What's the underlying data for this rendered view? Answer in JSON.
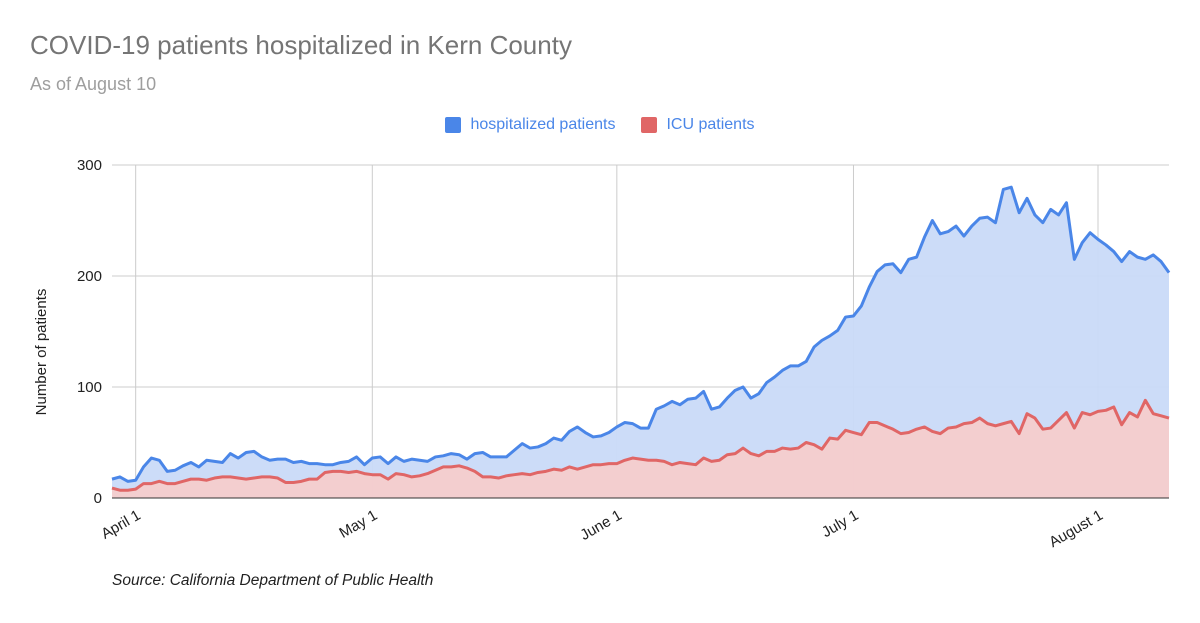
{
  "chart_data": {
    "type": "area",
    "title": "COVID-19 patients hospitalized in Kern County",
    "subtitle": "As of August 10",
    "ylabel": "Number of patients",
    "xlabel": "",
    "ylim": [
      0,
      300
    ],
    "y_ticks": [
      "0",
      "100",
      "200",
      "300"
    ],
    "x_ticks": [
      {
        "label": "April 1",
        "date": "2020-04-01"
      },
      {
        "label": "May 1",
        "date": "2020-05-01"
      },
      {
        "label": "June 1",
        "date": "2020-06-01"
      },
      {
        "label": "July 1",
        "date": "2020-07-01"
      },
      {
        "label": "August 1",
        "date": "2020-08-01"
      }
    ],
    "x_start": "2020-03-29",
    "x_end": "2020-08-10",
    "grid": true,
    "legend_position": "top",
    "source": "Source: California Department of Public Health",
    "series": [
      {
        "name": "hospitalized patients",
        "color": "#4a86e8",
        "fill": "#c9daf8",
        "values": [
          17,
          19,
          15,
          16,
          28,
          36,
          34,
          24,
          25,
          29,
          32,
          28,
          34,
          33,
          32,
          40,
          36,
          41,
          42,
          37,
          34,
          35,
          35,
          32,
          33,
          31,
          31,
          30,
          30,
          32,
          33,
          37,
          30,
          36,
          37,
          31,
          37,
          33,
          35,
          34,
          33,
          37,
          38,
          40,
          39,
          35,
          40,
          41,
          37,
          37,
          37,
          43,
          49,
          45,
          46,
          49,
          54,
          52,
          60,
          64,
          59,
          55,
          56,
          59,
          64,
          68,
          67,
          63,
          63,
          80,
          83,
          87,
          84,
          89,
          90,
          96,
          80,
          82,
          90,
          97,
          100,
          90,
          94,
          104,
          109,
          115,
          119,
          119,
          123,
          136,
          142,
          146,
          151,
          163,
          164,
          173,
          190,
          204,
          210,
          211,
          203,
          215,
          217,
          235,
          250,
          238,
          240,
          245,
          236,
          245,
          252,
          253,
          248,
          278,
          280,
          257,
          270,
          255,
          248,
          260,
          255,
          266,
          215,
          230,
          239,
          233,
          228,
          222,
          213,
          222,
          217,
          215,
          219,
          213,
          203
        ]
      },
      {
        "name": "ICU patients",
        "color": "#e06666",
        "fill": "#f4cccc",
        "values": [
          9,
          7,
          7,
          8,
          13,
          13,
          15,
          13,
          13,
          15,
          17,
          17,
          16,
          18,
          19,
          19,
          18,
          17,
          18,
          19,
          19,
          18,
          14,
          14,
          15,
          17,
          17,
          23,
          24,
          24,
          23,
          24,
          22,
          21,
          21,
          17,
          22,
          21,
          19,
          20,
          22,
          25,
          28,
          28,
          29,
          27,
          24,
          19,
          19,
          18,
          20,
          21,
          22,
          21,
          23,
          24,
          26,
          25,
          28,
          26,
          28,
          30,
          30,
          31,
          31,
          34,
          36,
          35,
          34,
          34,
          33,
          30,
          32,
          31,
          30,
          36,
          33,
          34,
          39,
          40,
          45,
          40,
          38,
          42,
          42,
          45,
          44,
          45,
          50,
          48,
          44,
          54,
          53,
          61,
          59,
          57,
          68,
          68,
          65,
          62,
          58,
          59,
          62,
          64,
          60,
          58,
          63,
          64,
          67,
          68,
          72,
          67,
          65,
          67,
          69,
          58,
          76,
          72,
          62,
          63,
          70,
          77,
          63,
          77,
          75,
          78,
          79,
          82,
          66,
          77,
          73,
          88,
          76,
          74,
          72
        ]
      }
    ]
  },
  "legend": {
    "hospitalized_label": "hospitalized patients",
    "icu_label": "ICU patients"
  }
}
